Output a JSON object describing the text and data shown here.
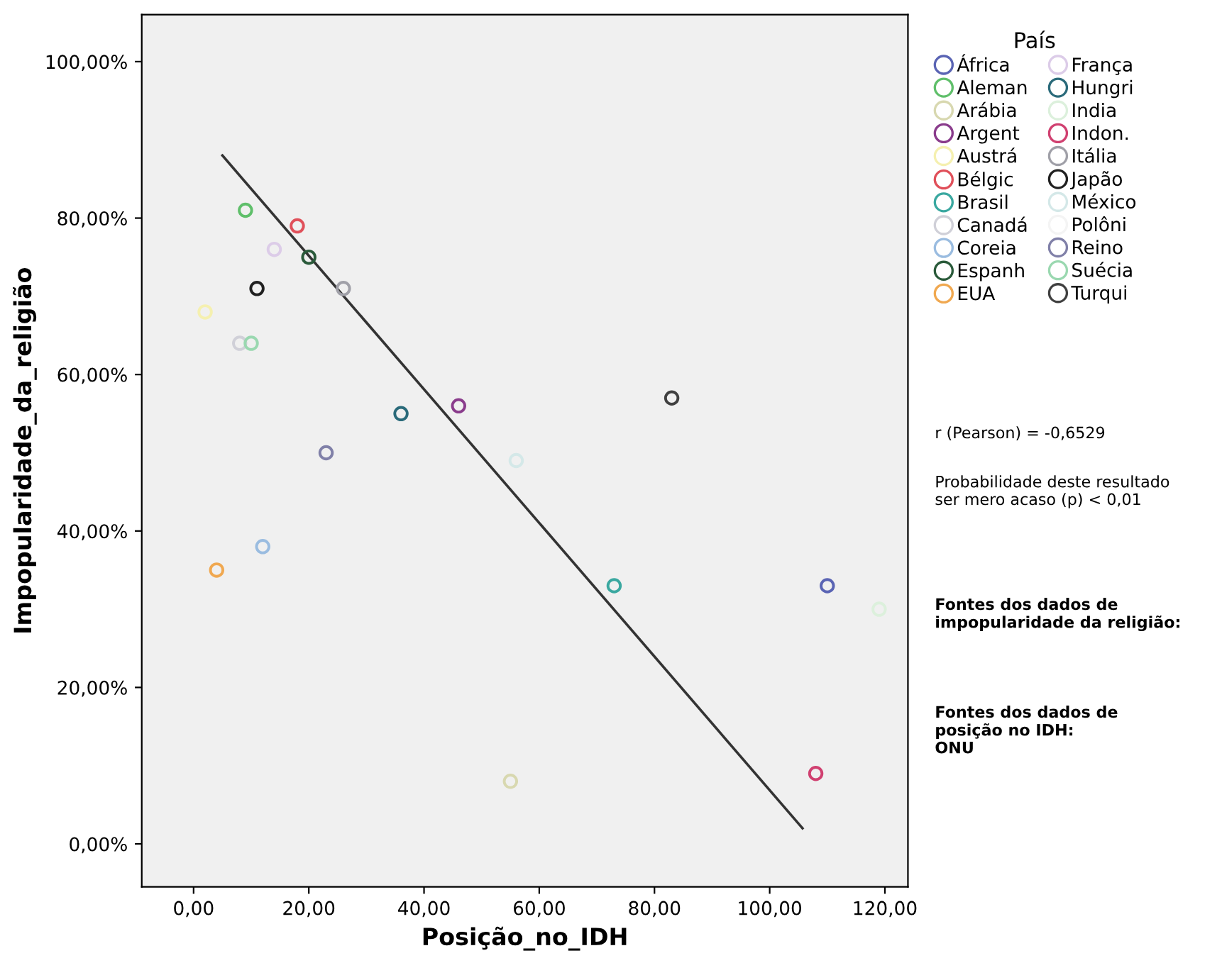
{
  "chart_data": {
    "type": "scatter",
    "xlabel": "Posição_no_IDH",
    "ylabel": "Impopularidade_da_religião",
    "legend_title": "País",
    "legend": "right",
    "marker": "circle",
    "grid": false,
    "xlim": [
      -9,
      124
    ],
    "xticks": [
      {
        "value": 0,
        "label": "0,00"
      },
      {
        "value": 20,
        "label": "20,00"
      },
      {
        "value": 40,
        "label": "40,00"
      },
      {
        "value": 60,
        "label": "60,00"
      },
      {
        "value": 80,
        "label": "80,00"
      },
      {
        "value": 100,
        "label": "100,00"
      },
      {
        "value": 120,
        "label": "120,00"
      }
    ],
    "ylim": [
      -5.5,
      106
    ],
    "yticks": [
      {
        "value": 0,
        "label": "0,00%"
      },
      {
        "value": 20,
        "label": "20,00%"
      },
      {
        "value": 40,
        "label": "40,00%"
      },
      {
        "value": 60,
        "label": "60,00%"
      },
      {
        "value": 80,
        "label": "80,00%"
      },
      {
        "value": 100,
        "label": "100,00%"
      }
    ],
    "series": [
      {
        "name": "África",
        "color": "#5a64b4",
        "x": [
          110
        ],
        "values": [
          33
        ]
      },
      {
        "name": "Aleman",
        "color": "#5fbf6a",
        "x": [
          9
        ],
        "values": [
          81
        ]
      },
      {
        "name": "Arábia",
        "color": "#d8d8b0",
        "x": [
          55
        ],
        "values": [
          8
        ]
      },
      {
        "name": "Argent",
        "color": "#8a3c8c",
        "x": [
          46
        ],
        "values": [
          56
        ]
      },
      {
        "name": "Austrá",
        "color": "#f5f0b0",
        "x": [
          2
        ],
        "values": [
          68
        ]
      },
      {
        "name": "Bélgic",
        "color": "#e0505a",
        "x": [
          18
        ],
        "values": [
          79
        ]
      },
      {
        "name": "Brasil",
        "color": "#3aa8a0",
        "x": [
          73
        ],
        "values": [
          33
        ]
      },
      {
        "name": "Canadá",
        "color": "#d0d0d8",
        "x": [
          8
        ],
        "values": [
          64
        ]
      },
      {
        "name": "Coreia",
        "color": "#9abce0",
        "x": [
          12
        ],
        "values": [
          38
        ]
      },
      {
        "name": "Espanh",
        "color": "#2a5a3a",
        "x": [
          20
        ],
        "values": [
          75
        ]
      },
      {
        "name": "EUA",
        "color": "#f0a850",
        "x": [
          4
        ],
        "values": [
          35
        ]
      },
      {
        "name": "França",
        "color": "#dccce8",
        "x": [
          14
        ],
        "values": [
          76
        ]
      },
      {
        "name": "Hungri",
        "color": "#2a6a7a",
        "x": [
          36
        ],
        "values": [
          55
        ]
      },
      {
        "name": "India",
        "color": "#dcf0dc",
        "x": [
          119
        ],
        "values": [
          30
        ]
      },
      {
        "name": "Indon.",
        "color": "#d04070",
        "x": [
          108
        ],
        "values": [
          9
        ]
      },
      {
        "name": "Itália",
        "color": "#a0a0a8",
        "x": [
          26
        ],
        "values": [
          71
        ]
      },
      {
        "name": "Japão",
        "color": "#202020",
        "x": [
          11
        ],
        "values": [
          71
        ]
      },
      {
        "name": "México",
        "color": "#d4e8e8",
        "x": [
          56
        ],
        "values": [
          49
        ]
      },
      {
        "name": "Polôni",
        "color": "#f4f4f4"
      },
      {
        "name": "Reino",
        "color": "#8080a8",
        "x": [
          23
        ],
        "values": [
          50
        ]
      },
      {
        "name": "Suécia",
        "color": "#9ad8b0",
        "x": [
          10
        ],
        "values": [
          64
        ]
      },
      {
        "name": "Turqui",
        "color": "#404040",
        "x": [
          83
        ],
        "values": [
          57
        ]
      },
      {
        "type": "line",
        "marker": "none",
        "color": "#333333",
        "x": [
          5,
          105.7
        ],
        "values": [
          88,
          2
        ]
      }
    ],
    "annotations": [
      "r (Pearson) = -0,6529",
      "Probabilidade deste resultado\nser mero acaso (p) < 0,01",
      "Fontes dos dados de\nimpopularidade da religião:",
      "Fontes dos dados de\nposição no IDH:\nONU"
    ]
  }
}
